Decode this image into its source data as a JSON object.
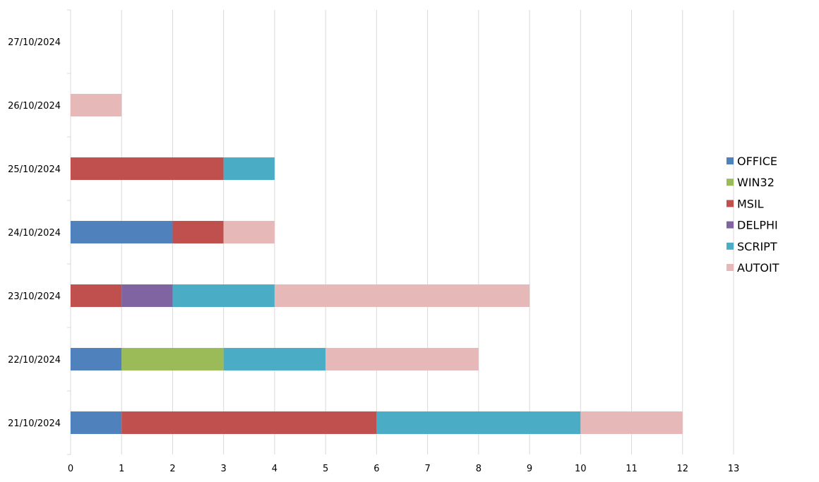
{
  "chart_data": {
    "type": "bar",
    "orientation": "horizontal",
    "stacked": true,
    "categories": [
      "21/10/2024",
      "22/10/2024",
      "23/10/2024",
      "24/10/2024",
      "25/10/2024",
      "26/10/2024",
      "27/10/2024"
    ],
    "series": [
      {
        "name": "OFFICE",
        "color": "#4f81bd",
        "values": [
          1,
          1,
          0,
          2,
          0,
          0,
          0
        ]
      },
      {
        "name": "WIN32",
        "color": "#9bbb59",
        "values": [
          0,
          2,
          0,
          0,
          0,
          0,
          0
        ]
      },
      {
        "name": "MSIL",
        "color": "#c0504d",
        "values": [
          5,
          0,
          1,
          1,
          3,
          0,
          0
        ]
      },
      {
        "name": "DELPHI",
        "color": "#8064a2",
        "values": [
          0,
          0,
          1,
          0,
          0,
          0,
          0
        ]
      },
      {
        "name": "SCRIPT",
        "color": "#4bacc6",
        "values": [
          4,
          2,
          2,
          0,
          1,
          0,
          0
        ]
      },
      {
        "name": "AUTOIT",
        "color": "#e6b9b8",
        "values": [
          2,
          3,
          5,
          1,
          0,
          1,
          0
        ]
      }
    ],
    "xlim": [
      0,
      13
    ],
    "xticks": [
      0,
      1,
      2,
      3,
      4,
      5,
      6,
      7,
      8,
      9,
      10,
      11,
      12,
      13
    ],
    "grid": true,
    "legend_position": "right",
    "title": "",
    "xlabel": "",
    "ylabel": ""
  }
}
